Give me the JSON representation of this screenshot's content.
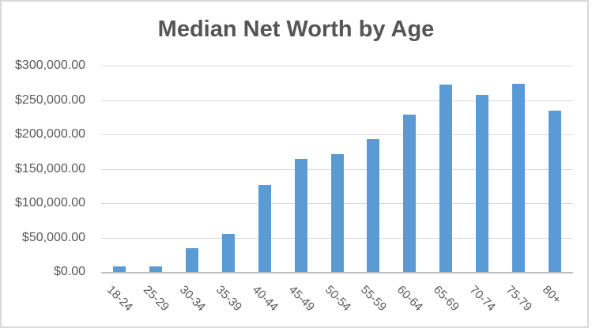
{
  "chart_data": {
    "type": "bar",
    "title": "Median Net Worth by Age",
    "categories": [
      "18-24",
      "25-29",
      "30-34",
      "35-39",
      "40-44",
      "45-49",
      "50-54",
      "55-59",
      "60-64",
      "65-69",
      "70-74",
      "75-79",
      "80+"
    ],
    "values": [
      8000,
      8000,
      35000,
      55000,
      127000,
      164000,
      171000,
      193000,
      229000,
      272000,
      258000,
      274000,
      235000
    ],
    "xlabel": "",
    "ylabel": "",
    "y_axis": {
      "min": 0,
      "max": 300000,
      "step": 50000,
      "tick_labels": [
        "$0.00",
        "$50,000.00",
        "$100,000.00",
        "$150,000.00",
        "$200,000.00",
        "$250,000.00",
        "$300,000.00"
      ]
    },
    "grid": true,
    "legend": null,
    "colors": {
      "bar": "#5B9BD5",
      "text": "#595959",
      "title_text": "#555555",
      "gridline": "#D9D9D9",
      "axis_line": "#BFBFBF",
      "frame_border": "#D9D9D9",
      "background": "#FFFFFF"
    }
  }
}
